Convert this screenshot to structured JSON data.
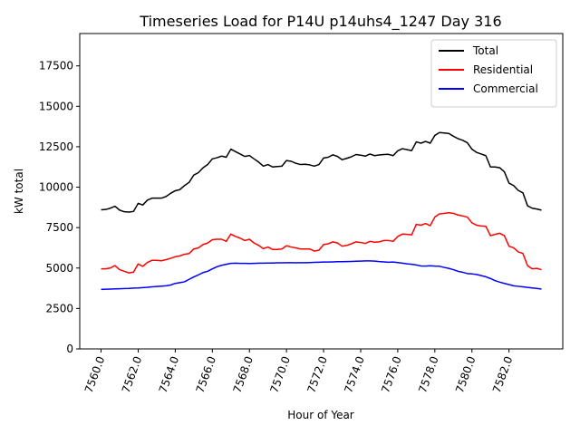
{
  "chart_data": {
    "type": "line",
    "title": "Timeseries Load for P14U p14uhs4_1247  Day 316",
    "xlabel": "Hour of Year",
    "ylabel": "kW total",
    "xlim": [
      7558.85,
      7584.9
    ],
    "ylim": [
      0,
      19500
    ],
    "xticks": [
      7560,
      7562,
      7564,
      7566,
      7568,
      7570,
      7572,
      7574,
      7576,
      7578,
      7580,
      7582
    ],
    "xtick_labels": [
      "7560.0",
      "7562.0",
      "7564.0",
      "7566.0",
      "7568.0",
      "7570.0",
      "7572.0",
      "7574.0",
      "7576.0",
      "7578.0",
      "7580.0",
      "7582.0"
    ],
    "yticks": [
      0,
      2500,
      5000,
      7500,
      10000,
      12500,
      15000,
      17500
    ],
    "ytick_labels": [
      "0",
      "2500",
      "5000",
      "7500",
      "10000",
      "12500",
      "15000",
      "17500"
    ],
    "legend_position": "top-right",
    "x": [
      7560.0,
      7560.25,
      7560.5,
      7560.75,
      7561.0,
      7561.25,
      7561.5,
      7561.75,
      7562.0,
      7562.25,
      7562.5,
      7562.75,
      7563.0,
      7563.25,
      7563.5,
      7563.75,
      7564.0,
      7564.25,
      7564.5,
      7564.75,
      7565.0,
      7565.25,
      7565.5,
      7565.75,
      7566.0,
      7566.25,
      7566.5,
      7566.75,
      7567.0,
      7567.25,
      7567.5,
      7567.75,
      7568.0,
      7568.25,
      7568.5,
      7568.75,
      7569.0,
      7569.25,
      7569.5,
      7569.75,
      7570.0,
      7570.25,
      7570.5,
      7570.75,
      7571.0,
      7571.25,
      7571.5,
      7571.75,
      7572.0,
      7572.25,
      7572.5,
      7572.75,
      7573.0,
      7573.25,
      7573.5,
      7573.75,
      7574.0,
      7574.25,
      7574.5,
      7574.75,
      7575.0,
      7575.25,
      7575.5,
      7575.75,
      7576.0,
      7576.25,
      7576.5,
      7576.75,
      7577.0,
      7577.25,
      7577.5,
      7577.75,
      7578.0,
      7578.25,
      7578.5,
      7578.75,
      7579.0,
      7579.25,
      7579.5,
      7579.75,
      7580.0,
      7580.25,
      7580.5,
      7580.75,
      7581.0,
      7581.25,
      7581.5,
      7581.75,
      7582.0,
      7582.25,
      7582.5,
      7582.75,
      7583.0,
      7583.25,
      7583.5,
      7583.75
    ],
    "series": [
      {
        "name": "Total",
        "color": "#000000",
        "values": [
          8600,
          8620,
          8700,
          8820,
          8580,
          8480,
          8460,
          8500,
          9000,
          8900,
          9200,
          9320,
          9320,
          9320,
          9420,
          9620,
          9780,
          9850,
          10100,
          10300,
          10750,
          10900,
          11200,
          11400,
          11750,
          11820,
          11920,
          11850,
          12350,
          12200,
          12050,
          11900,
          11960,
          11750,
          11550,
          11300,
          11400,
          11250,
          11280,
          11300,
          11650,
          11600,
          11480,
          11400,
          11420,
          11380,
          11300,
          11400,
          11800,
          11850,
          12000,
          11900,
          11700,
          11780,
          11880,
          12020,
          11980,
          11920,
          12050,
          11950,
          11990,
          12020,
          12030,
          11950,
          12250,
          12380,
          12320,
          12260,
          12800,
          12720,
          12830,
          12720,
          13200,
          13380,
          13350,
          13320,
          13150,
          13000,
          12900,
          12750,
          12350,
          12150,
          12050,
          11950,
          11250,
          11250,
          11200,
          10950,
          10250,
          10100,
          9800,
          9650,
          8850,
          8700,
          8650,
          8580
        ]
      },
      {
        "name": "Residential",
        "color": "#ff0000",
        "values": [
          4950,
          4950,
          5000,
          5150,
          4900,
          4800,
          4700,
          4750,
          5250,
          5100,
          5350,
          5480,
          5480,
          5450,
          5520,
          5600,
          5700,
          5750,
          5850,
          5900,
          6180,
          6250,
          6450,
          6550,
          6750,
          6780,
          6780,
          6650,
          7100,
          6950,
          6850,
          6700,
          6780,
          6550,
          6400,
          6200,
          6300,
          6150,
          6150,
          6180,
          6380,
          6300,
          6250,
          6180,
          6180,
          6180,
          6050,
          6100,
          6450,
          6500,
          6620,
          6550,
          6350,
          6400,
          6500,
          6620,
          6580,
          6520,
          6650,
          6600,
          6620,
          6700,
          6700,
          6650,
          6950,
          7100,
          7080,
          7050,
          7700,
          7650,
          7750,
          7620,
          8150,
          8350,
          8380,
          8420,
          8380,
          8280,
          8220,
          8150,
          7800,
          7650,
          7600,
          7580,
          7000,
          7080,
          7150,
          7000,
          6350,
          6250,
          6000,
          5900,
          5150,
          4950,
          4980,
          4900
        ]
      },
      {
        "name": "Commercial",
        "color": "#0000ff",
        "values": [
          3680,
          3690,
          3700,
          3710,
          3720,
          3730,
          3740,
          3760,
          3770,
          3790,
          3810,
          3840,
          3860,
          3880,
          3900,
          3950,
          4050,
          4100,
          4150,
          4300,
          4450,
          4580,
          4720,
          4800,
          4950,
          5080,
          5170,
          5230,
          5290,
          5300,
          5290,
          5290,
          5280,
          5290,
          5300,
          5300,
          5310,
          5310,
          5320,
          5320,
          5330,
          5330,
          5320,
          5330,
          5330,
          5340,
          5350,
          5360,
          5370,
          5370,
          5380,
          5390,
          5390,
          5400,
          5410,
          5420,
          5430,
          5440,
          5440,
          5430,
          5400,
          5380,
          5360,
          5370,
          5340,
          5300,
          5260,
          5230,
          5190,
          5130,
          5120,
          5140,
          5120,
          5110,
          5040,
          4980,
          4900,
          4800,
          4740,
          4660,
          4640,
          4600,
          4530,
          4460,
          4350,
          4220,
          4130,
          4050,
          3980,
          3900,
          3870,
          3840,
          3800,
          3770,
          3740,
          3700
        ]
      }
    ]
  }
}
